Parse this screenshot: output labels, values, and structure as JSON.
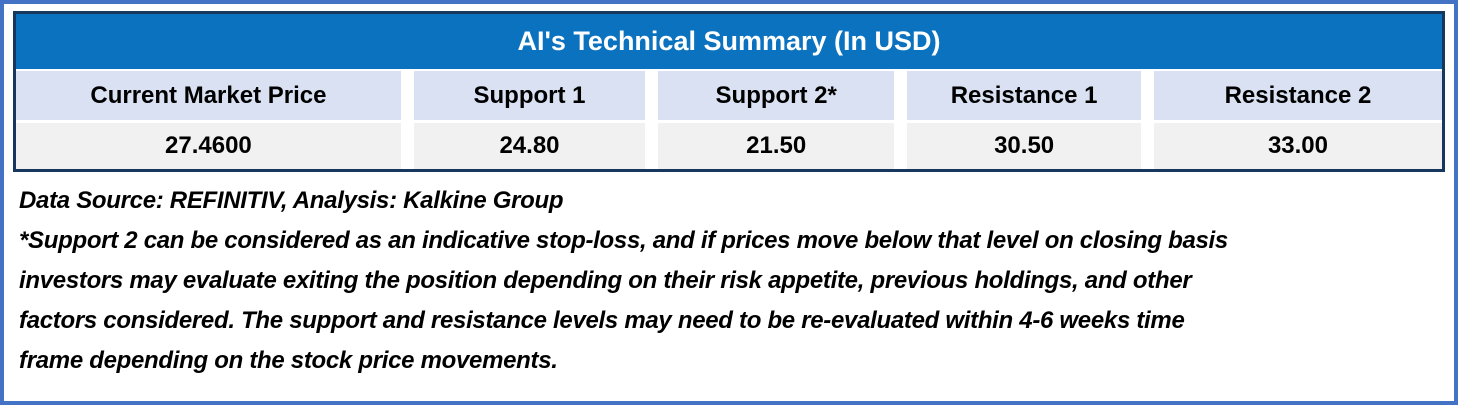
{
  "chart_data": {
    "type": "table",
    "title": "AI's Technical Summary (In USD)",
    "columns": [
      "Current Market Price",
      "Support 1",
      "Support 2*",
      "Resistance 1",
      "Resistance 2"
    ],
    "rows": [
      [
        "27.4600",
        "24.80",
        "21.50",
        "30.50",
        "33.00"
      ]
    ]
  },
  "table": {
    "title": "AI's Technical Summary (In USD)",
    "cols": [
      {
        "label": "Current Market Price",
        "value": "27.4600"
      },
      {
        "label": "Support 1",
        "value": "24.80"
      },
      {
        "label": "Support 2*",
        "value": "21.50"
      },
      {
        "label": "Resistance 1",
        "value": "30.50"
      },
      {
        "label": "Resistance 2",
        "value": "33.00"
      }
    ]
  },
  "footer": {
    "source_line": "Data Source: REFINITIV, Analysis: Kalkine Group",
    "disclaimer_lines": [
      "*Support 2 can be considered as an indicative stop-loss, and if prices move below that level on closing basis",
      "investors may evaluate exiting the position depending on their risk appetite, previous holdings, and other",
      "factors considered. The support and resistance levels may need to be re-evaluated within 4-6 weeks time",
      "frame depending on the stock price movements."
    ]
  },
  "colors": {
    "outer_border": "#4472c4",
    "table_border": "#17375e",
    "title_bg": "#0b72bf",
    "title_text": "#ffffff",
    "header_bg": "#d9e1f2",
    "value_bg": "#f1f1f1",
    "text": "#000000"
  }
}
